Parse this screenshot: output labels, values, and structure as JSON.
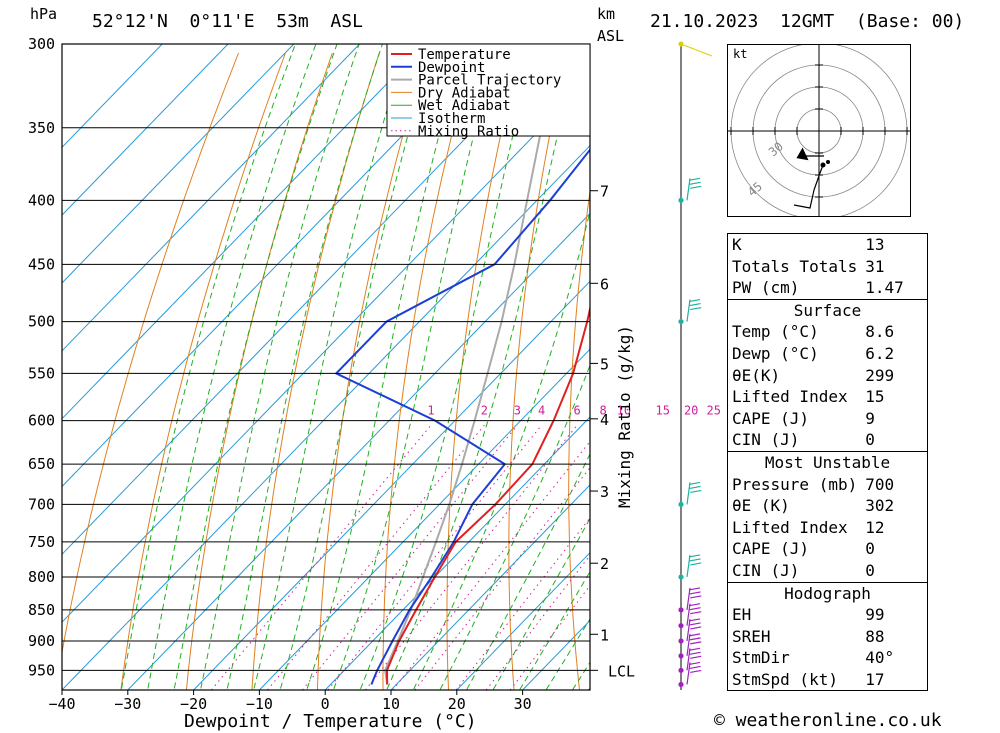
{
  "header": {
    "pressure_unit": "hPa",
    "location": "52°12'N  0°11'E  53m  ASL",
    "height_unit_top": "km",
    "height_unit_bottom": "ASL",
    "datetime": "21.10.2023  12GMT  (Base: 00)"
  },
  "chart_data": {
    "type": "skew-t",
    "xlabel": "Dewpoint / Temperature (°C)",
    "ylabel": "hPa",
    "right_axis_label": "km ASL",
    "mixing_axis_label": "Mixing Ratio (g/kg)",
    "x_ticks": [
      -40,
      -30,
      -20,
      -10,
      0,
      10,
      20,
      30
    ],
    "pressure_levels": [
      300,
      350,
      400,
      450,
      500,
      550,
      600,
      650,
      700,
      750,
      800,
      850,
      900,
      950
    ],
    "height_ticks": [
      {
        "km": "7",
        "p": 393
      },
      {
        "km": "6",
        "p": 466
      },
      {
        "km": "5",
        "p": 540
      },
      {
        "km": "4",
        "p": 598
      },
      {
        "km": "3",
        "p": 683
      },
      {
        "km": "2",
        "p": 780
      },
      {
        "km": "1",
        "p": 889
      },
      {
        "km": "LCL",
        "p": 950
      }
    ],
    "mixing_ratio_labels": [
      "1",
      "2",
      "3",
      "4",
      "6",
      "8",
      "10",
      "15",
      "20",
      "25"
    ],
    "mixing_ratio_values": [
      1,
      2,
      3,
      4,
      6,
      8,
      10,
      15,
      20,
      25
    ],
    "legend": [
      "Temperature",
      "Dewpoint",
      "Parcel Trajectory",
      "Dry Adiabat",
      "Wet Adiabat",
      "Isotherm",
      "Mixing Ratio"
    ],
    "colors": {
      "temperature": "#e02020",
      "dewpoint": "#1c3fd6",
      "parcel": "#aaaaaa",
      "dry_adiabat": "#e08020",
      "wet_adiabat": "#20b020",
      "isotherm": "#2a9ad8",
      "mixing_ratio": "#d0209a",
      "wind": "#20b0a0",
      "wind_low": "#a020c0"
    },
    "temperature": [
      [
        975,
        8.6
      ],
      [
        950,
        6.5
      ],
      [
        900,
        4.0
      ],
      [
        850,
        2.0
      ],
      [
        800,
        0.0
      ],
      [
        750,
        -2.0
      ],
      [
        700,
        -1.5
      ],
      [
        650,
        -1.8
      ],
      [
        600,
        -5.0
      ],
      [
        550,
        -9.0
      ],
      [
        500,
        -14.5
      ],
      [
        450,
        -21.0
      ],
      [
        400,
        -29.5
      ],
      [
        350,
        -38.0
      ],
      [
        300,
        -47.0
      ]
    ],
    "dewpoint": [
      [
        975,
        6.2
      ],
      [
        950,
        5.0
      ],
      [
        900,
        3.0
      ],
      [
        850,
        1.0
      ],
      [
        800,
        -0.5
      ],
      [
        750,
        -2.3
      ],
      [
        700,
        -5.0
      ],
      [
        650,
        -6.0
      ],
      [
        600,
        -23.0
      ],
      [
        550,
        -45.0
      ],
      [
        500,
        -45.0
      ],
      [
        450,
        -37.0
      ],
      [
        400,
        -38.0
      ],
      [
        350,
        -40.0
      ],
      [
        300,
        -49.0
      ]
    ],
    "parcel": [
      [
        975,
        8.6
      ],
      [
        950,
        6.2
      ],
      [
        900,
        3.8
      ],
      [
        850,
        1.2
      ],
      [
        800,
        -1.8
      ],
      [
        750,
        -5.0
      ],
      [
        700,
        -8.5
      ],
      [
        650,
        -12.5
      ],
      [
        600,
        -17.0
      ],
      [
        550,
        -22.0
      ],
      [
        500,
        -27.5
      ],
      [
        450,
        -34.0
      ],
      [
        400,
        -41.5
      ],
      [
        350,
        -50.0
      ],
      [
        300,
        -60.0
      ]
    ],
    "wind_levels": [
      975,
      950,
      925,
      900,
      875,
      850,
      800,
      700,
      500,
      400,
      300
    ],
    "hodograph": {
      "unit": "kt",
      "ring_labels": [
        "30",
        "45"
      ]
    }
  },
  "indices": {
    "k_label": "K",
    "k": "13",
    "tt_label": "Totals Totals",
    "tt": "31",
    "pw_label": "PW (cm)",
    "pw": "1.47"
  },
  "surface": {
    "title": "Surface",
    "temp_label": "Temp (°C)",
    "temp": "8.6",
    "dewp_label": "Dewp (°C)",
    "dewp": "6.2",
    "thetae_label": "θE(K)",
    "thetae": "299",
    "li_label": "Lifted Index",
    "li": "15",
    "cape_label": "CAPE (J)",
    "cape": "9",
    "cin_label": "CIN (J)",
    "cin": "0"
  },
  "most_unstable": {
    "title": "Most Unstable",
    "pressure_label": "Pressure (mb)",
    "pressure": "700",
    "thetae_label": "θE (K)",
    "thetae": "302",
    "li_label": "Lifted Index",
    "li": "12",
    "cape_label": "CAPE (J)",
    "cape": "0",
    "cin_label": "CIN (J)",
    "cin": "0"
  },
  "hodograph_stats": {
    "title": "Hodograph",
    "eh_label": "EH",
    "eh": "99",
    "sreh_label": "SREH",
    "sreh": "88",
    "stmdir_label": "StmDir",
    "stmdir": "40°",
    "stmspd_label": "StmSpd (kt)",
    "stmspd": "17"
  },
  "footer": {
    "copyright": "© weatheronline.co.uk"
  }
}
